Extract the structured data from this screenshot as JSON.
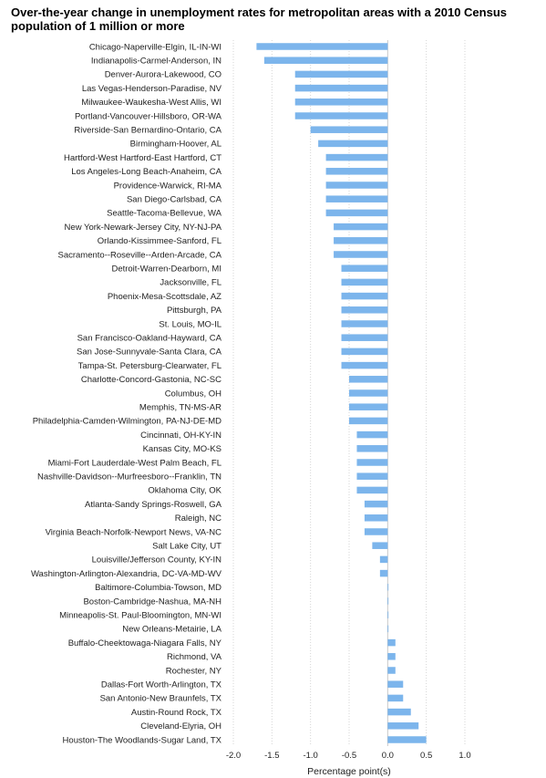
{
  "chart_data": {
    "type": "bar",
    "orientation": "horizontal",
    "title": "Over-the-year change in unemployment rates for metropolitan areas with a 2010 Census population of 1 million or more",
    "xlabel": "Percentage point(s)",
    "ylabel": "",
    "xlim": [
      -2.0,
      1.0
    ],
    "xticks": [
      "-2.0",
      "-1.5",
      "-1.0",
      "-0.5",
      "0.0",
      "0.5",
      "1.0"
    ],
    "grid": "vertical dotted",
    "bar_color": "#7cb5ec",
    "categories": [
      "Chicago-Naperville-Elgin, IL-IN-WI",
      "Indianapolis-Carmel-Anderson, IN",
      "Denver-Aurora-Lakewood, CO",
      "Las Vegas-Henderson-Paradise, NV",
      "Milwaukee-Waukesha-West Allis, WI",
      "Portland-Vancouver-Hillsboro, OR-WA",
      "Riverside-San Bernardino-Ontario, CA",
      "Birmingham-Hoover, AL",
      "Hartford-West Hartford-East Hartford, CT",
      "Los Angeles-Long Beach-Anaheim, CA",
      "Providence-Warwick, RI-MA",
      "San Diego-Carlsbad, CA",
      "Seattle-Tacoma-Bellevue, WA",
      "New York-Newark-Jersey City, NY-NJ-PA",
      "Orlando-Kissimmee-Sanford, FL",
      "Sacramento--Roseville--Arden-Arcade, CA",
      "Detroit-Warren-Dearborn, MI",
      "Jacksonville, FL",
      "Phoenix-Mesa-Scottsdale, AZ",
      "Pittsburgh, PA",
      "St. Louis, MO-IL",
      "San Francisco-Oakland-Hayward, CA",
      "San Jose-Sunnyvale-Santa Clara, CA",
      "Tampa-St. Petersburg-Clearwater, FL",
      "Charlotte-Concord-Gastonia, NC-SC",
      "Columbus, OH",
      "Memphis, TN-MS-AR",
      "Philadelphia-Camden-Wilmington, PA-NJ-DE-MD",
      "Cincinnati, OH-KY-IN",
      "Kansas City, MO-KS",
      "Miami-Fort Lauderdale-West Palm Beach, FL",
      "Nashville-Davidson--Murfreesboro--Franklin, TN",
      "Oklahoma City, OK",
      "Atlanta-Sandy Springs-Roswell, GA",
      "Raleigh, NC",
      "Virginia Beach-Norfolk-Newport News, VA-NC",
      "Salt Lake City, UT",
      "Louisville/Jefferson County, KY-IN",
      "Washington-Arlington-Alexandria, DC-VA-MD-WV",
      "Baltimore-Columbia-Towson, MD",
      "Boston-Cambridge-Nashua, MA-NH",
      "Minneapolis-St. Paul-Bloomington, MN-WI",
      "New Orleans-Metairie, LA",
      "Buffalo-Cheektowaga-Niagara Falls, NY",
      "Richmond, VA",
      "Rochester, NY",
      "Dallas-Fort Worth-Arlington, TX",
      "San Antonio-New Braunfels, TX",
      "Austin-Round Rock, TX",
      "Cleveland-Elyria, OH",
      "Houston-The Woodlands-Sugar Land, TX"
    ],
    "values": [
      -1.7,
      -1.6,
      -1.2,
      -1.2,
      -1.2,
      -1.2,
      -1.0,
      -0.9,
      -0.8,
      -0.8,
      -0.8,
      -0.8,
      -0.8,
      -0.7,
      -0.7,
      -0.7,
      -0.6,
      -0.6,
      -0.6,
      -0.6,
      -0.6,
      -0.6,
      -0.6,
      -0.6,
      -0.5,
      -0.5,
      -0.5,
      -0.5,
      -0.4,
      -0.4,
      -0.4,
      -0.4,
      -0.4,
      -0.3,
      -0.3,
      -0.3,
      -0.2,
      -0.1,
      -0.1,
      0.0,
      0.0,
      0.0,
      0.0,
      0.1,
      0.1,
      0.1,
      0.2,
      0.2,
      0.3,
      0.4,
      0.5
    ]
  }
}
